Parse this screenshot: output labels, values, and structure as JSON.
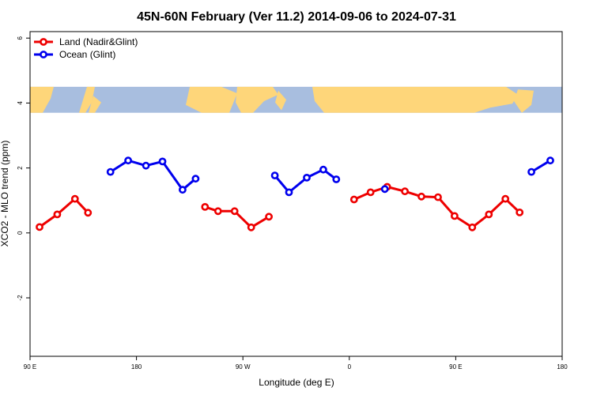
{
  "chart_data": {
    "type": "line",
    "title": "45N-60N February (Ver 11.2)   2014-09-06 to 2024-07-31",
    "xlabel": "Longitude (deg E)",
    "ylabel": "XCO2 - MLO trend (ppm)",
    "xlim": [
      90,
      540
    ],
    "ylim": [
      -3.8,
      6.2
    ],
    "x_ticks": [
      {
        "value": 90,
        "label": "90 E"
      },
      {
        "value": 180,
        "label": "180"
      },
      {
        "value": 270,
        "label": "90 W"
      },
      {
        "value": 360,
        "label": "0"
      },
      {
        "value": 450,
        "label": "90 E"
      },
      {
        "value": 540,
        "label": "180"
      }
    ],
    "y_ticks": [
      {
        "value": -2,
        "label": "-2"
      },
      {
        "value": 0,
        "label": "0"
      },
      {
        "value": 2,
        "label": "2"
      },
      {
        "value": 4,
        "label": "4"
      },
      {
        "value": 6,
        "label": "6"
      }
    ],
    "legend_position": "top-left",
    "map_strip": {
      "y_range": [
        3.7,
        4.5
      ],
      "land_color": "#fed67a",
      "ocean_color": "#a8bedf"
    },
    "series": [
      {
        "name": "Land (Nadir&Glint)",
        "color": "#ee0000",
        "segments": [
          [
            [
              98,
              0.18
            ],
            [
              113,
              0.57
            ],
            [
              128,
              1.05
            ],
            [
              139,
              0.62
            ]
          ],
          [
            [
              238,
              0.8
            ],
            [
              249,
              0.67
            ],
            [
              263,
              0.67
            ],
            [
              277,
              0.17
            ],
            [
              292,
              0.5
            ]
          ],
          [
            [
              364,
              1.03
            ],
            [
              378,
              1.25
            ],
            [
              392,
              1.42
            ],
            [
              407,
              1.28
            ],
            [
              421,
              1.12
            ],
            [
              435,
              1.1
            ],
            [
              449,
              0.52
            ],
            [
              464,
              0.17
            ],
            [
              478,
              0.57
            ],
            [
              492,
              1.05
            ],
            [
              504,
              0.63
            ]
          ]
        ]
      },
      {
        "name": "Ocean (Glint)",
        "color": "#0000ee",
        "segments": [
          [
            [
              158,
              1.88
            ],
            [
              173,
              2.23
            ],
            [
              188,
              2.07
            ],
            [
              202,
              2.2
            ],
            [
              219,
              1.33
            ],
            [
              230,
              1.67
            ]
          ],
          [
            [
              297,
              1.77
            ],
            [
              309,
              1.25
            ],
            [
              324,
              1.7
            ],
            [
              338,
              1.95
            ],
            [
              349,
              1.65
            ]
          ],
          [
            [
              390,
              1.35
            ]
          ],
          [
            [
              514,
              1.88
            ],
            [
              530,
              2.23
            ]
          ]
        ]
      }
    ]
  }
}
